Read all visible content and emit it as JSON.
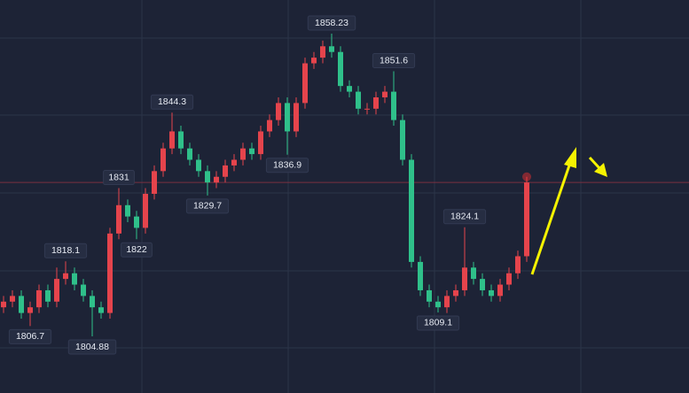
{
  "chart_data": {
    "type": "candlestick",
    "up_color": "#e5444c",
    "down_color": "#2fc08a",
    "open": [
      1810,
      1811,
      1812,
      1809,
      1810,
      1813,
      1811,
      1815,
      1816,
      1814,
      1812,
      1810,
      1809,
      1823,
      1828,
      1826,
      1824,
      1830,
      1834,
      1838,
      1841,
      1838,
      1836,
      1834,
      1832,
      1833,
      1835,
      1836,
      1838,
      1837,
      1841,
      1843,
      1846,
      1841,
      1846,
      1853,
      1854,
      1856,
      1855,
      1849,
      1848,
      1845,
      1845,
      1847,
      1848,
      1843,
      1836,
      1818,
      1813,
      1811,
      1810,
      1812,
      1813,
      1817,
      1815,
      1813,
      1812,
      1814,
      1816,
      1819
    ],
    "high": [
      1812,
      1813,
      1813,
      1811,
      1814,
      1814,
      1817,
      1818.1,
      1817,
      1815,
      1813,
      1811,
      1824,
      1831,
      1829,
      1827,
      1831,
      1835,
      1839,
      1844.3,
      1842,
      1839,
      1837,
      1835,
      1834,
      1836,
      1837,
      1839,
      1839,
      1842,
      1844,
      1847,
      1847,
      1847,
      1854,
      1855,
      1857,
      1858.23,
      1856,
      1850,
      1849,
      1846,
      1848,
      1849,
      1851.6,
      1844,
      1837,
      1819,
      1814,
      1812,
      1813,
      1814,
      1824.1,
      1818,
      1816,
      1814,
      1815,
      1817,
      1820,
      1833
    ],
    "low": [
      1809,
      1810,
      1808,
      1806.7,
      1809,
      1810,
      1810,
      1814,
      1813,
      1811,
      1804.88,
      1808,
      1808,
      1822,
      1825,
      1822,
      1823,
      1829,
      1833,
      1837,
      1837,
      1835,
      1833,
      1829.7,
      1831,
      1832,
      1834,
      1835,
      1836,
      1836,
      1840,
      1842,
      1836.9,
      1840,
      1845,
      1852,
      1853,
      1854,
      1848,
      1847,
      1844,
      1844,
      1844,
      1846,
      1842,
      1835,
      1817,
      1812,
      1810,
      1809.1,
      1809,
      1811,
      1812,
      1814,
      1812,
      1811,
      1811,
      1813,
      1815,
      1818
    ],
    "close": [
      1811,
      1812,
      1809,
      1810,
      1813,
      1811,
      1815,
      1816,
      1814,
      1812,
      1810,
      1809,
      1823,
      1828,
      1826,
      1824,
      1830,
      1834,
      1838,
      1841,
      1838,
      1836,
      1834,
      1832,
      1833,
      1835,
      1836,
      1838,
      1837,
      1841,
      1843,
      1846,
      1841,
      1846,
      1853,
      1854,
      1856,
      1855,
      1849,
      1848,
      1845,
      1845,
      1847,
      1848,
      1843,
      1836,
      1818,
      1813,
      1811,
      1810,
      1812,
      1813,
      1817,
      1815,
      1813,
      1812,
      1814,
      1816,
      1819,
      1832
    ]
  }
}
